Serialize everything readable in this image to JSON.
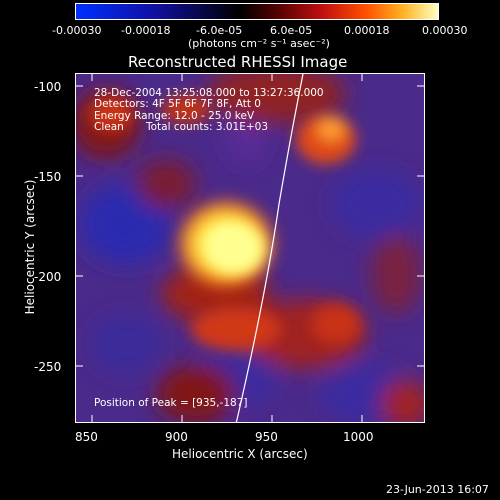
{
  "colorbar": {
    "tick_labels": [
      "-0.00030",
      "-0.00018",
      "-6.0e-05",
      "6.0e-05",
      "0.00018",
      "0.00030"
    ],
    "units": "(photons cm⁻² s⁻¹ asec⁻²)"
  },
  "plot": {
    "title": "Reconstructed RHESSI Image",
    "time_range": "28-Dec-2004 13:25:08.000 to 13:27:36.000",
    "detectors": "Detectors: 4F 5F 6F 7F 8F, Att 0",
    "energy": "Energy Range: 12.0 - 25.0 keV",
    "method": "Clean",
    "counts": "Total counts: 3.01E+03",
    "peak": "Position of Peak = [935,-187]",
    "xlabel": "Heliocentric X (arcsec)",
    "ylabel": "Heliocentric Y (arcsec)",
    "x_ticks": [
      "850",
      "900",
      "950",
      "1000"
    ],
    "y_ticks": [
      "-100",
      "-150",
      "-200",
      "-250"
    ],
    "xlim": [
      843,
      1036
    ],
    "ylim": [
      -285,
      -92
    ]
  },
  "footer": {
    "timestamp": "23-Jun-2013 16:07"
  },
  "colors": {
    "background": "#000000",
    "foreground": "#ffffff",
    "map_low": "#2b1a8a",
    "map_mid": "#7a2ab0",
    "map_hot": "#e0301a",
    "map_peak": "#ffff80"
  }
}
